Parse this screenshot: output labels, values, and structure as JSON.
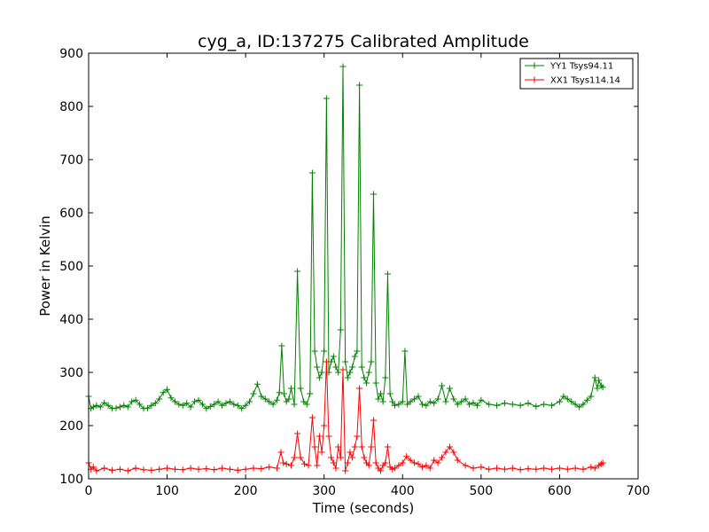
{
  "chart_data": {
    "type": "line",
    "title": "cyg_a, ID:137275 Calibrated Amplitude",
    "xlabel": "Time (seconds)",
    "ylabel": "Power in Kelvin",
    "xlim": [
      0,
      700
    ],
    "ylim": [
      100,
      900
    ],
    "xticks": [
      0,
      100,
      200,
      300,
      400,
      500,
      600,
      700
    ],
    "yticks": [
      100,
      200,
      300,
      400,
      500,
      600,
      700,
      800,
      900
    ],
    "grid": false,
    "legend_position": "top-right",
    "series": [
      {
        "name": "YY1 Tsys94.11",
        "color": "#008000",
        "x": [
          0,
          3,
          6,
          10,
          15,
          20,
          25,
          30,
          35,
          40,
          45,
          50,
          55,
          60,
          65,
          70,
          75,
          80,
          85,
          90,
          95,
          100,
          105,
          110,
          115,
          120,
          125,
          130,
          135,
          140,
          145,
          150,
          155,
          160,
          165,
          170,
          175,
          180,
          185,
          190,
          195,
          200,
          205,
          210,
          215,
          220,
          225,
          230,
          235,
          240,
          243,
          246,
          249,
          252,
          255,
          258,
          262,
          266,
          270,
          274,
          278,
          282,
          285,
          288,
          291,
          294,
          297,
          300,
          303,
          306,
          309,
          312,
          315,
          318,
          321,
          324,
          327,
          330,
          333,
          336,
          339,
          342,
          345,
          348,
          351,
          354,
          357,
          360,
          363,
          366,
          369,
          372,
          375,
          378,
          381,
          384,
          387,
          390,
          395,
          400,
          403,
          406,
          410,
          415,
          420,
          425,
          430,
          435,
          440,
          445,
          450,
          455,
          460,
          465,
          470,
          475,
          480,
          485,
          490,
          495,
          500,
          510,
          520,
          530,
          540,
          550,
          560,
          570,
          580,
          590,
          600,
          605,
          610,
          615,
          620,
          625,
          630,
          635,
          640,
          645,
          648,
          650,
          653,
          655
        ],
        "y": [
          255,
          232,
          235,
          238,
          235,
          243,
          238,
          232,
          233,
          235,
          238,
          235,
          245,
          248,
          240,
          232,
          233,
          238,
          242,
          250,
          262,
          268,
          252,
          245,
          240,
          238,
          242,
          235,
          245,
          248,
          240,
          232,
          236,
          240,
          245,
          238,
          242,
          245,
          240,
          238,
          232,
          238,
          245,
          260,
          278,
          255,
          250,
          245,
          240,
          248,
          262,
          350,
          260,
          245,
          250,
          270,
          240,
          490,
          270,
          245,
          240,
          260,
          675,
          340,
          310,
          290,
          300,
          340,
          815,
          300,
          320,
          330,
          310,
          300,
          380,
          875,
          320,
          290,
          300,
          310,
          330,
          340,
          840,
          310,
          290,
          280,
          300,
          320,
          635,
          280,
          250,
          260,
          245,
          290,
          485,
          260,
          245,
          238,
          240,
          245,
          340,
          240,
          245,
          250,
          255,
          240,
          238,
          245,
          242,
          250,
          275,
          245,
          270,
          250,
          240,
          245,
          250,
          240,
          243,
          238,
          248,
          240,
          238,
          242,
          240,
          238,
          242,
          236,
          240,
          238,
          245,
          255,
          250,
          245,
          240,
          235,
          240,
          248,
          255,
          290,
          270,
          285,
          275,
          272
        ]
      },
      {
        "name": "XX1 Tsys114.14",
        "color": "#ff0000",
        "x": [
          0,
          3,
          6,
          10,
          20,
          30,
          40,
          50,
          60,
          70,
          80,
          90,
          100,
          110,
          120,
          130,
          140,
          150,
          160,
          170,
          180,
          190,
          200,
          210,
          220,
          230,
          240,
          245,
          248,
          252,
          258,
          262,
          266,
          270,
          275,
          280,
          285,
          288,
          291,
          294,
          297,
          300,
          303,
          306,
          309,
          312,
          315,
          318,
          321,
          324,
          327,
          330,
          333,
          336,
          339,
          342,
          345,
          348,
          351,
          354,
          357,
          360,
          363,
          366,
          369,
          372,
          375,
          378,
          381,
          384,
          387,
          390,
          395,
          400,
          405,
          410,
          415,
          420,
          425,
          430,
          435,
          440,
          445,
          450,
          455,
          460,
          465,
          470,
          480,
          490,
          500,
          510,
          520,
          530,
          540,
          550,
          560,
          570,
          580,
          590,
          600,
          610,
          620,
          630,
          640,
          645,
          650,
          653,
          655
        ],
        "y": [
          130,
          118,
          122,
          115,
          120,
          116,
          118,
          115,
          120,
          117,
          116,
          118,
          120,
          118,
          117,
          120,
          118,
          119,
          117,
          120,
          118,
          116,
          118,
          120,
          119,
          122,
          120,
          150,
          130,
          128,
          125,
          140,
          185,
          140,
          128,
          125,
          215,
          160,
          125,
          180,
          150,
          200,
          320,
          180,
          140,
          130,
          120,
          160,
          140,
          305,
          115,
          130,
          150,
          140,
          160,
          180,
          270,
          160,
          140,
          130,
          125,
          160,
          210,
          130,
          120,
          115,
          125,
          130,
          160,
          122,
          118,
          120,
          125,
          130,
          142,
          135,
          130,
          128,
          122,
          125,
          120,
          135,
          130,
          140,
          150,
          160,
          150,
          135,
          125,
          120,
          122,
          118,
          120,
          118,
          120,
          117,
          119,
          118,
          120,
          118,
          120,
          118,
          120,
          118,
          122,
          120,
          125,
          128,
          130
        ]
      }
    ]
  }
}
